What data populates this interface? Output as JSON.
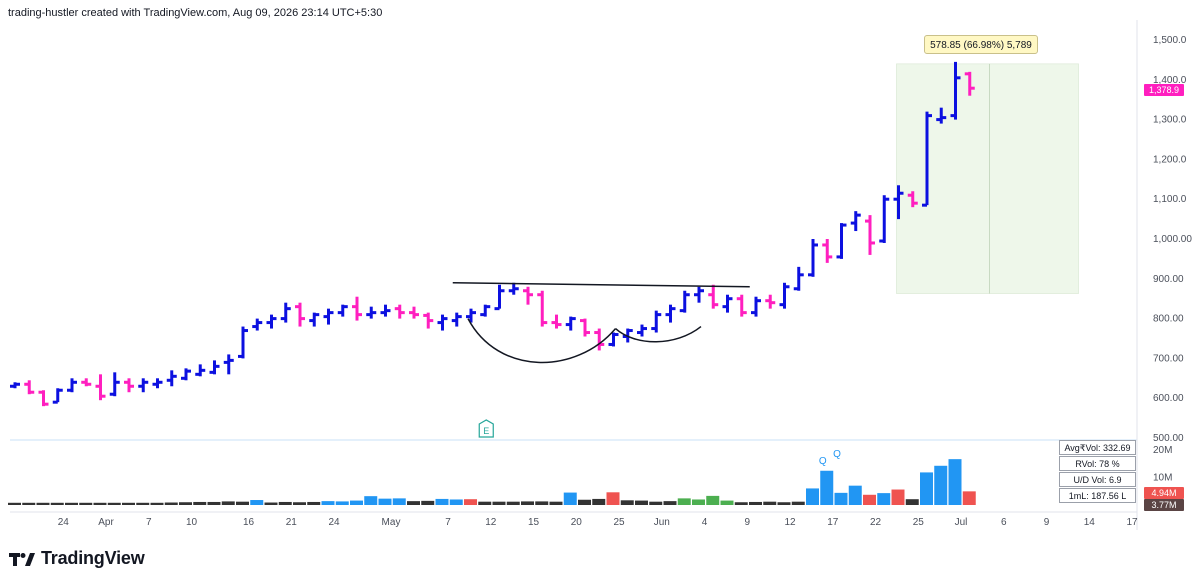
{
  "header": {
    "text": "trading-hustler created with TradingView.com, Aug 09, 2026 23:14 UTC+5:30"
  },
  "footer": {
    "brand": "TradingView"
  },
  "measure": {
    "label": "578.85 (66.98%) 5,789"
  },
  "price_badge": {
    "label": "1,378.9",
    "color": "#ff1fbf"
  },
  "volume_badges": [
    {
      "label": "4.94M",
      "color": "#ef5350"
    },
    {
      "label": "3.77M",
      "color": "#5a4444"
    }
  ],
  "legend": [
    {
      "label": "Avg₹Vol: 332.69 Cr"
    },
    {
      "label": "RVol: 78 %"
    },
    {
      "label": "U/D Vol: 6.9"
    },
    {
      "label": "1mL: 187.56 L"
    }
  ],
  "colors": {
    "up": "#0c10e0",
    "down": "#ff1fbf",
    "vol_blue": "#2196f3",
    "vol_black": "#333333",
    "vol_red": "#ef5350",
    "vol_green": "#4caf50",
    "zone": "#eef7ea"
  },
  "chart_data": {
    "type": "bar",
    "y_ticks": [
      "1,500.0",
      "1,400.0",
      "1,300.0",
      "1,200.0",
      "1,100.0",
      "1,000.00",
      "900.00",
      "800.00",
      "700.00",
      "600.00",
      "500.00"
    ],
    "y_tick_values": [
      1500,
      1400,
      1300,
      1200,
      1100,
      1000,
      900,
      800,
      700,
      600,
      500
    ],
    "ylim": [
      500,
      1520
    ],
    "vol_ticks": [
      {
        "label": "20M",
        "value": 20
      },
      {
        "label": "10M",
        "value": 10
      }
    ],
    "x_ticks": [
      {
        "label": "24",
        "i": 1
      },
      {
        "label": "Apr",
        "i": 4
      },
      {
        "label": "7",
        "i": 7
      },
      {
        "label": "10",
        "i": 10
      },
      {
        "label": "16",
        "i": 14
      },
      {
        "label": "21",
        "i": 17
      },
      {
        "label": "24",
        "i": 20
      },
      {
        "label": "May",
        "i": 24
      },
      {
        "label": "7",
        "i": 28
      },
      {
        "label": "12",
        "i": 31
      },
      {
        "label": "15",
        "i": 34
      },
      {
        "label": "20",
        "i": 37
      },
      {
        "label": "25",
        "i": 40
      },
      {
        "label": "Jun",
        "i": 43
      },
      {
        "label": "4",
        "i": 46
      },
      {
        "label": "9",
        "i": 49
      },
      {
        "label": "12",
        "i": 52
      },
      {
        "label": "17",
        "i": 55
      },
      {
        "label": "22",
        "i": 58
      },
      {
        "label": "25",
        "i": 61
      },
      {
        "label": "Jul",
        "i": 64
      },
      {
        "label": "6",
        "i": 67
      },
      {
        "label": "9",
        "i": 70
      },
      {
        "label": "14",
        "i": 73
      },
      {
        "label": "17",
        "i": 76
      }
    ],
    "ohlc": [
      [
        630,
        640,
        625,
        635
      ],
      [
        635,
        645,
        610,
        615
      ],
      [
        615,
        620,
        580,
        585
      ],
      [
        590,
        625,
        590,
        620
      ],
      [
        620,
        650,
        615,
        640
      ],
      [
        640,
        650,
        630,
        635
      ],
      [
        630,
        660,
        595,
        605
      ],
      [
        610,
        665,
        605,
        640
      ],
      [
        640,
        650,
        615,
        630
      ],
      [
        630,
        650,
        615,
        640
      ],
      [
        635,
        650,
        625,
        640
      ],
      [
        645,
        670,
        630,
        655
      ],
      [
        650,
        675,
        645,
        668
      ],
      [
        660,
        685,
        655,
        670
      ],
      [
        665,
        695,
        660,
        680
      ],
      [
        690,
        710,
        660,
        695
      ],
      [
        705,
        780,
        700,
        770
      ],
      [
        780,
        800,
        770,
        790
      ],
      [
        790,
        810,
        775,
        800
      ],
      [
        800,
        840,
        790,
        825
      ],
      [
        830,
        840,
        780,
        800
      ],
      [
        795,
        815,
        780,
        810
      ],
      [
        805,
        825,
        785,
        815
      ],
      [
        815,
        835,
        805,
        830
      ],
      [
        830,
        855,
        795,
        810
      ],
      [
        810,
        830,
        800,
        815
      ],
      [
        815,
        835,
        805,
        820
      ],
      [
        825,
        835,
        800,
        815
      ],
      [
        815,
        830,
        800,
        810
      ],
      [
        808,
        815,
        775,
        795
      ],
      [
        790,
        810,
        770,
        800
      ],
      [
        795,
        815,
        780,
        805
      ],
      [
        805,
        825,
        790,
        815
      ],
      [
        810,
        835,
        805,
        830
      ],
      [
        825,
        885,
        825,
        870
      ],
      [
        870,
        890,
        860,
        875
      ],
      [
        870,
        880,
        835,
        860
      ],
      [
        860,
        870,
        780,
        790
      ],
      [
        790,
        810,
        775,
        785
      ],
      [
        785,
        805,
        770,
        800
      ],
      [
        795,
        800,
        755,
        765
      ],
      [
        765,
        775,
        720,
        735
      ],
      [
        735,
        765,
        730,
        760
      ],
      [
        755,
        775,
        740,
        770
      ],
      [
        765,
        785,
        755,
        775
      ],
      [
        775,
        820,
        765,
        810
      ],
      [
        810,
        835,
        790,
        825
      ],
      [
        820,
        870,
        815,
        860
      ],
      [
        860,
        880,
        840,
        870
      ],
      [
        860,
        885,
        825,
        835
      ],
      [
        830,
        860,
        815,
        850
      ],
      [
        850,
        860,
        805,
        815
      ],
      [
        815,
        855,
        805,
        845
      ],
      [
        845,
        860,
        825,
        840
      ],
      [
        835,
        890,
        825,
        880
      ],
      [
        875,
        930,
        870,
        910
      ],
      [
        910,
        1000,
        905,
        985
      ],
      [
        985,
        1000,
        940,
        955
      ],
      [
        955,
        1040,
        950,
        1035
      ],
      [
        1040,
        1070,
        1020,
        1060
      ],
      [
        1045,
        1060,
        960,
        990
      ],
      [
        995,
        1110,
        990,
        1100
      ],
      [
        1100,
        1135,
        1050,
        1115
      ],
      [
        1110,
        1120,
        1080,
        1090
      ],
      [
        1085,
        1320,
        1085,
        1310
      ],
      [
        1300,
        1330,
        1290,
        1305
      ],
      [
        1310,
        1445,
        1300,
        1405
      ],
      [
        1415,
        1420,
        1360,
        1378.9
      ]
    ],
    "volume": [
      {
        "v": 0.8,
        "c": "b"
      },
      {
        "v": 0.9,
        "c": "b"
      },
      {
        "v": 1.0,
        "c": "b"
      },
      {
        "v": 1.1,
        "c": "b"
      },
      {
        "v": 1.1,
        "c": "b"
      },
      {
        "v": 1.3,
        "c": "b"
      },
      {
        "v": 1.2,
        "c": "b"
      },
      {
        "v": 1.8,
        "c": "u"
      },
      {
        "v": 0.9,
        "c": "b"
      },
      {
        "v": 1.1,
        "c": "b"
      },
      {
        "v": 1.0,
        "c": "b"
      },
      {
        "v": 1.1,
        "c": "b"
      },
      {
        "v": 1.4,
        "c": "u"
      },
      {
        "v": 1.3,
        "c": "u"
      },
      {
        "v": 1.6,
        "c": "u"
      },
      {
        "v": 3.2,
        "c": "u"
      },
      {
        "v": 2.3,
        "c": "u"
      },
      {
        "v": 2.4,
        "c": "u"
      },
      {
        "v": 1.4,
        "c": "b"
      },
      {
        "v": 1.5,
        "c": "b"
      },
      {
        "v": 2.2,
        "c": "u"
      },
      {
        "v": 2.0,
        "c": "u"
      },
      {
        "v": 2.1,
        "c": "r"
      },
      {
        "v": 1.2,
        "c": "b"
      },
      {
        "v": 1.2,
        "c": "b"
      },
      {
        "v": 1.2,
        "c": "b"
      },
      {
        "v": 1.3,
        "c": "b"
      },
      {
        "v": 1.3,
        "c": "b"
      },
      {
        "v": 1.2,
        "c": "b"
      },
      {
        "v": 4.5,
        "c": "u"
      },
      {
        "v": 1.9,
        "c": "b"
      },
      {
        "v": 2.2,
        "c": "b"
      },
      {
        "v": 4.6,
        "c": "r"
      },
      {
        "v": 1.7,
        "c": "b"
      },
      {
        "v": 1.6,
        "c": "b"
      },
      {
        "v": 1.2,
        "c": "b"
      },
      {
        "v": 1.4,
        "c": "b"
      },
      {
        "v": 2.4,
        "c": "g"
      },
      {
        "v": 2.0,
        "c": "g"
      },
      {
        "v": 3.3,
        "c": "g"
      },
      {
        "v": 1.6,
        "c": "g"
      },
      {
        "v": 1.0,
        "c": "b"
      },
      {
        "v": 1.1,
        "c": "b"
      },
      {
        "v": 1.2,
        "c": "b"
      },
      {
        "v": 1.0,
        "c": "b"
      },
      {
        "v": 1.2,
        "c": "b"
      },
      {
        "v": 6.0,
        "c": "u"
      },
      {
        "v": 12.4,
        "c": "u"
      },
      {
        "v": 4.4,
        "c": "u"
      },
      {
        "v": 7.0,
        "c": "u"
      },
      {
        "v": 3.7,
        "c": "r"
      },
      {
        "v": 4.3,
        "c": "u"
      },
      {
        "v": 5.6,
        "c": "r"
      },
      {
        "v": 2.1,
        "c": "b"
      },
      {
        "v": 11.8,
        "c": "u"
      },
      {
        "v": 14.2,
        "c": "u"
      },
      {
        "v": 16.6,
        "c": "u"
      },
      {
        "v": 4.94,
        "c": "r"
      }
    ],
    "volume_offset": 10,
    "vol_max": 21,
    "q_marks": [
      {
        "label": "Q",
        "i": 55
      },
      {
        "label": "Q",
        "i": 56
      }
    ],
    "earnings_marker": {
      "label": "E",
      "i": 33
    },
    "resistance": {
      "y": 890,
      "from_i": 31,
      "to_i": 51
    },
    "measure_zone": {
      "from_i": 62,
      "to_i": 74,
      "low": 863,
      "high": 1440
    }
  }
}
